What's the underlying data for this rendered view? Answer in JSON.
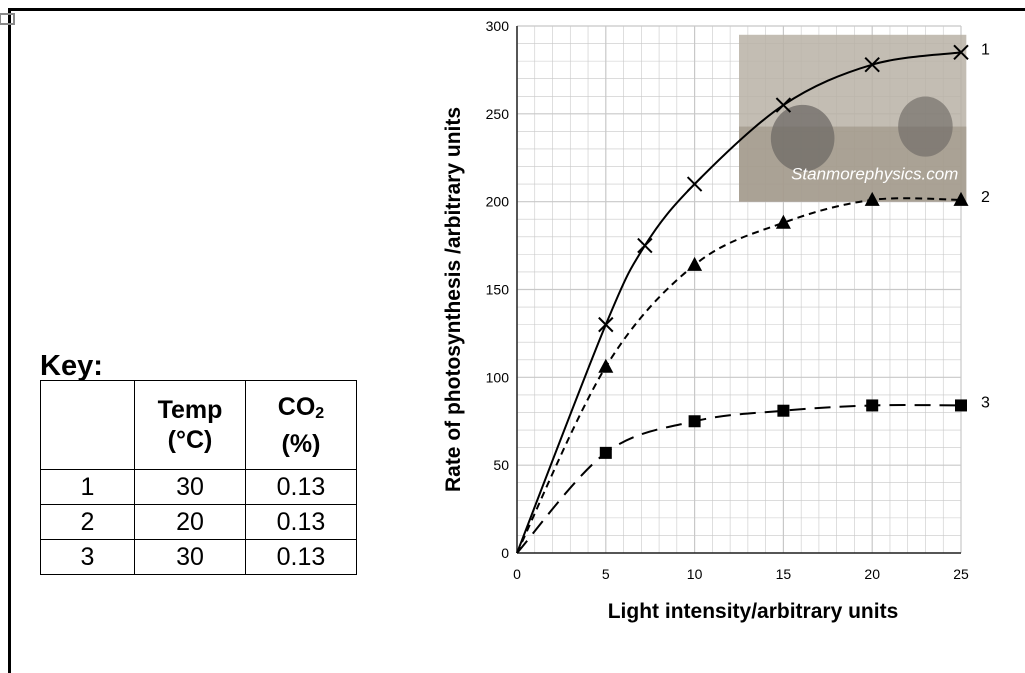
{
  "key": {
    "title": "Key:",
    "headers": {
      "id": "",
      "temp_line1": "Temp",
      "temp_line2": "(°C)",
      "co2_main": "CO",
      "co2_sub": "2",
      "co2_line2": "(%)"
    },
    "rows": [
      {
        "id": "1",
        "temp": "30",
        "co2": "0.13"
      },
      {
        "id": "2",
        "temp": "20",
        "co2": "0.13"
      },
      {
        "id": "3",
        "temp": "30",
        "co2": "0.13"
      }
    ]
  },
  "watermark_text": "Stanmorephysics.com",
  "chart_data": {
    "type": "line",
    "xlabel": "Light intensity/arbitrary units",
    "ylabel": "Rate of photosynthesis /arbitrary units",
    "xlim": [
      0,
      25
    ],
    "ylim": [
      0,
      300
    ],
    "xticks": [
      0,
      5,
      10,
      15,
      20,
      25
    ],
    "yticks": [
      0,
      50,
      100,
      150,
      200,
      250,
      300
    ],
    "grid": true,
    "series": [
      {
        "name": "1",
        "marker": "cross",
        "dash": "solid",
        "x": [
          0,
          5,
          7.2,
          10,
          15,
          20,
          25
        ],
        "y": [
          0,
          130,
          175,
          210,
          255,
          278,
          285
        ]
      },
      {
        "name": "2",
        "marker": "triangle",
        "dash": "dashed",
        "x": [
          0,
          5,
          10,
          15,
          20,
          25
        ],
        "y": [
          0,
          106,
          164,
          188,
          201,
          201
        ]
      },
      {
        "name": "3",
        "marker": "square",
        "dash": "long-dashed",
        "x": [
          0,
          5,
          10,
          15,
          20,
          25
        ],
        "y": [
          0,
          57,
          75,
          81,
          84,
          84
        ]
      }
    ]
  }
}
